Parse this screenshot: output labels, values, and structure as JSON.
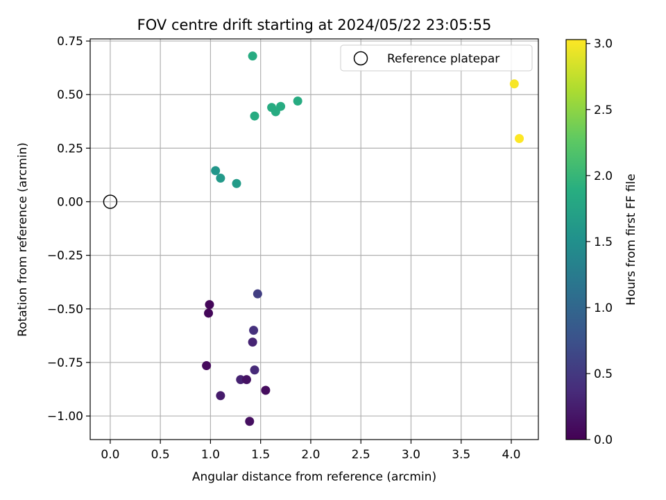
{
  "chart_data": {
    "type": "scatter",
    "title": "FOV centre drift starting at 2024/05/22 23:05:55",
    "xlabel": "Angular distance from reference (arcmin)",
    "ylabel": "Rotation from reference (arcmin)",
    "xlim": [
      -0.2,
      4.27
    ],
    "ylim": [
      -1.11,
      0.76
    ],
    "xticks": [
      0.0,
      0.5,
      1.0,
      1.5,
      2.0,
      2.5,
      3.0,
      3.5,
      4.0
    ],
    "xtick_labels": [
      "0.0",
      "0.5",
      "1.0",
      "1.5",
      "2.0",
      "2.5",
      "3.0",
      "3.5",
      "4.0"
    ],
    "yticks": [
      0.75,
      0.5,
      0.25,
      0.0,
      -0.25,
      -0.5,
      -0.75,
      -1.0
    ],
    "ytick_labels": [
      "0.75",
      "0.50",
      "0.25",
      "0.00",
      "−0.25",
      "−0.50",
      "−0.75",
      "−1.00"
    ],
    "grid": true,
    "legend": {
      "position": "top-right",
      "entries": [
        "Reference platepar"
      ]
    },
    "reference_point": {
      "x": 0.0,
      "y": 0.0
    },
    "colorbar": {
      "label": "Hours from first FF file",
      "range": [
        0.0,
        3.03
      ],
      "ticks": [
        0.0,
        0.5,
        1.0,
        1.5,
        2.0,
        2.5,
        3.0
      ],
      "tick_labels": [
        "0.0",
        "0.5",
        "1.0",
        "1.5",
        "2.0",
        "2.5",
        "3.0"
      ],
      "colormap": "viridis"
    },
    "points": [
      {
        "x": 0.99,
        "y": -0.48,
        "c": 0.05
      },
      {
        "x": 0.98,
        "y": -0.52,
        "c": 0.05
      },
      {
        "x": 0.96,
        "y": -0.765,
        "c": 0.08
      },
      {
        "x": 1.1,
        "y": -0.905,
        "c": 0.22
      },
      {
        "x": 1.3,
        "y": -0.83,
        "c": 0.28
      },
      {
        "x": 1.36,
        "y": -0.83,
        "c": 0.15
      },
      {
        "x": 1.39,
        "y": -1.025,
        "c": 0.12
      },
      {
        "x": 1.55,
        "y": -0.88,
        "c": 0.1
      },
      {
        "x": 1.44,
        "y": -0.785,
        "c": 0.35
      },
      {
        "x": 1.42,
        "y": -0.655,
        "c": 0.3
      },
      {
        "x": 1.43,
        "y": -0.6,
        "c": 0.42
      },
      {
        "x": 1.47,
        "y": -0.43,
        "c": 0.55
      },
      {
        "x": 1.05,
        "y": 0.145,
        "c": 1.58
      },
      {
        "x": 1.1,
        "y": 0.11,
        "c": 1.62
      },
      {
        "x": 1.26,
        "y": 0.085,
        "c": 1.65
      },
      {
        "x": 1.44,
        "y": 0.4,
        "c": 1.85
      },
      {
        "x": 1.61,
        "y": 0.44,
        "c": 1.85
      },
      {
        "x": 1.65,
        "y": 0.42,
        "c": 1.85
      },
      {
        "x": 1.7,
        "y": 0.445,
        "c": 1.85
      },
      {
        "x": 1.87,
        "y": 0.47,
        "c": 1.85
      },
      {
        "x": 1.42,
        "y": 0.68,
        "c": 1.85
      },
      {
        "x": 4.03,
        "y": 0.55,
        "c": 3.0
      },
      {
        "x": 4.08,
        "y": 0.295,
        "c": 3.03
      }
    ]
  }
}
